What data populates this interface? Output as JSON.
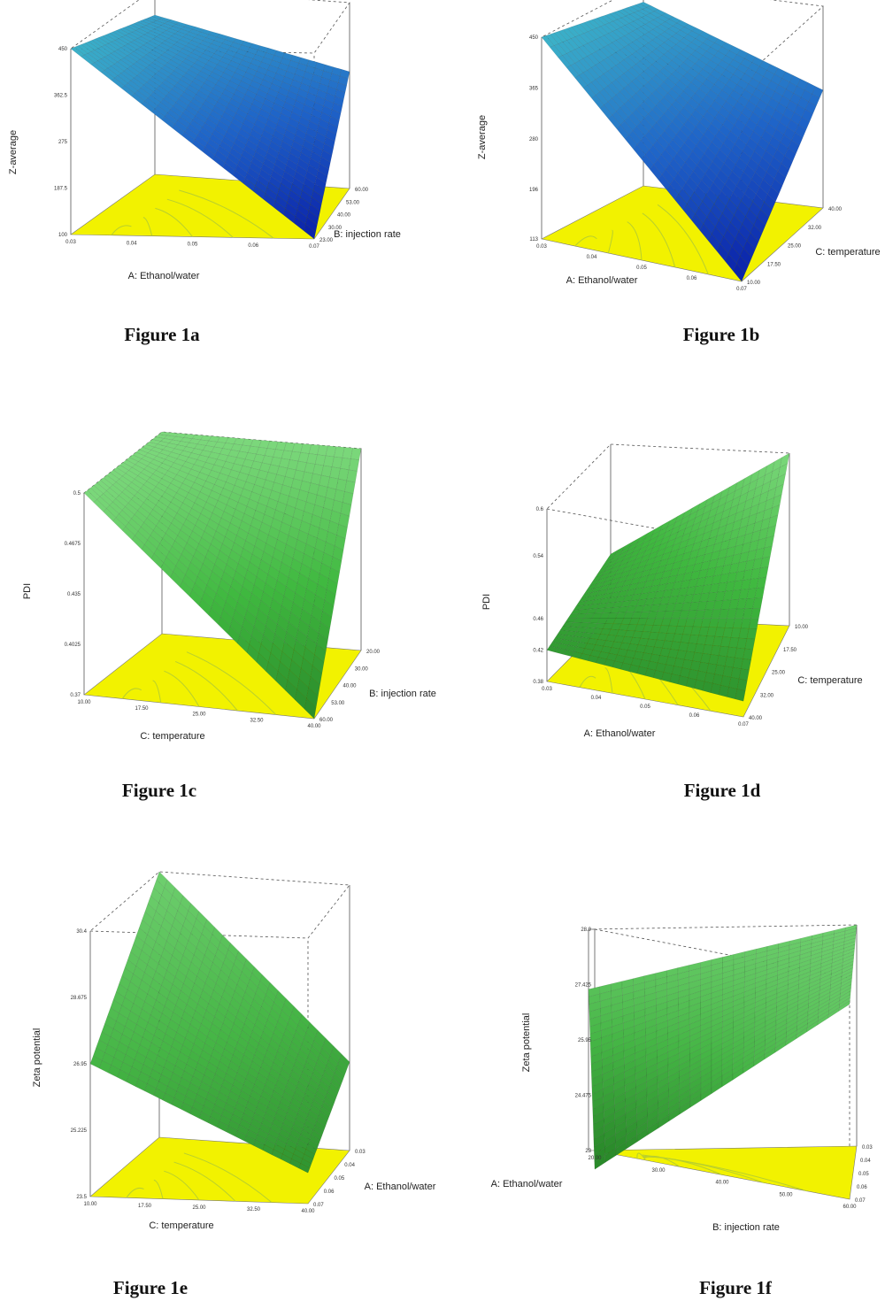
{
  "captions": [
    "Figure 1a",
    "Figure 1b",
    "Figure 1c",
    "Figure 1d",
    "Figure 1e",
    "Figure 1f"
  ],
  "colors": {
    "floor": "#f2f200",
    "contour": "#b8cf2e",
    "frame": "#555555",
    "z_average_surface": [
      "#0a1fa8",
      "#1f64c8",
      "#3cb4c8"
    ],
    "pdi_surface": [
      "#2a8a2a",
      "#3fb83f",
      "#7cd87c"
    ],
    "zeta_surface": [
      "#2a8a2a",
      "#45b545",
      "#6fcf6f"
    ]
  },
  "chart_data": [
    {
      "type": "surface3d",
      "zlabel": "Z-average",
      "xlabel": "A: Ethanol/water",
      "ylabel": "B: injection rate",
      "z_ticks": [
        "100",
        "187.5",
        "275",
        "362.5",
        "450"
      ],
      "x_ticks": [
        "0.03",
        "0.04",
        "0.05",
        "0.06",
        "0.07"
      ],
      "y_ticks": [
        "23.00",
        "30.00",
        "40.00",
        "53.00",
        "60.00"
      ],
      "zlim": [
        100,
        450
      ],
      "corners_z": {
        "front_left": 450,
        "front_right": 100,
        "back_left": 400,
        "back_right": 320
      },
      "colorscheme": "z_average_surface"
    },
    {
      "type": "surface3d",
      "zlabel": "Z-average",
      "xlabel": "A: Ethanol/water",
      "ylabel": "C: temperature",
      "z_ticks": [
        "113",
        "196",
        "280",
        "365",
        "450"
      ],
      "x_ticks": [
        "0.03",
        "0.04",
        "0.05",
        "0.06",
        "0.07"
      ],
      "y_ticks": [
        "10.00",
        "17.50",
        "25.00",
        "32.00",
        "40.00"
      ],
      "zlim": [
        113,
        450
      ],
      "corners_z": {
        "front_left": 450,
        "front_right": 113,
        "back_left": 420,
        "back_right": 310
      },
      "colorscheme": "z_average_surface"
    },
    {
      "type": "surface3d",
      "zlabel": "PDI",
      "xlabel": "C: temperature",
      "ylabel": "B: injection rate",
      "z_ticks": [
        "0.37",
        "0.4025",
        "0.435",
        "0.4675",
        "0.5"
      ],
      "x_ticks": [
        "10.00",
        "17.50",
        "25.00",
        "32.50",
        "40.00"
      ],
      "y_ticks": [
        "60.00",
        "53.00",
        "40.00",
        "30.00",
        "20.00"
      ],
      "zlim": [
        0.37,
        0.5
      ],
      "corners_z": {
        "front_left": 0.5,
        "front_right": 0.37,
        "back_left": 0.5,
        "back_right": 0.5
      },
      "colorscheme": "pdi_surface"
    },
    {
      "type": "surface3d",
      "zlabel": "PDI",
      "xlabel": "A: Ethanol/water",
      "ylabel": "C: temperature",
      "z_ticks": [
        "0.38",
        "0.42",
        "0.46",
        "0.54",
        "0.6"
      ],
      "x_ticks": [
        "0.03",
        "0.04",
        "0.05",
        "0.06",
        "0.07"
      ],
      "y_ticks": [
        "40.00",
        "32.00",
        "25.00",
        "17.50",
        "10.00"
      ],
      "zlim": [
        0.38,
        0.6
      ],
      "corners_z": {
        "front_left": 0.42,
        "front_right": 0.4,
        "back_left": 0.46,
        "back_right": 0.6
      },
      "colorscheme": "pdi_surface"
    },
    {
      "type": "surface3d",
      "zlabel": "Zeta potential",
      "xlabel": "C: temperature",
      "ylabel": "A: Ethanol/water",
      "z_ticks": [
        "23.5",
        "25.225",
        "26.95",
        "28.675",
        "30.4"
      ],
      "x_ticks": [
        "10.00",
        "17.50",
        "25.00",
        "32.50",
        "40.00"
      ],
      "y_ticks": [
        "0.07",
        "0.06",
        "0.05",
        "0.04",
        "0.03"
      ],
      "zlim": [
        23.5,
        30.4
      ],
      "corners_z": {
        "front_left": 26.95,
        "front_right": 24.3,
        "back_left": 30.4,
        "back_right": 25.8
      },
      "colorscheme": "zeta_surface"
    },
    {
      "type": "surface3d",
      "zlabel": "Zeta potential",
      "xlabel": "B: injection rate",
      "ylabel": "A: Ethanol/water",
      "z_ticks": [
        "23",
        "24.475",
        "25.95",
        "27.425",
        "28.9"
      ],
      "x_ticks": [
        "20.00",
        "30.00",
        "40.00",
        "50.00",
        "60.00"
      ],
      "y_ticks": [
        "0.07",
        "0.06",
        "0.05",
        "0.04",
        "0.03"
      ],
      "zlim": [
        23,
        28.9
      ],
      "corners_z": {
        "front_left": 22.5,
        "front_right": 28.2,
        "back_left": 27.3,
        "back_right": 28.9
      },
      "colorscheme": "zeta_surface"
    }
  ]
}
